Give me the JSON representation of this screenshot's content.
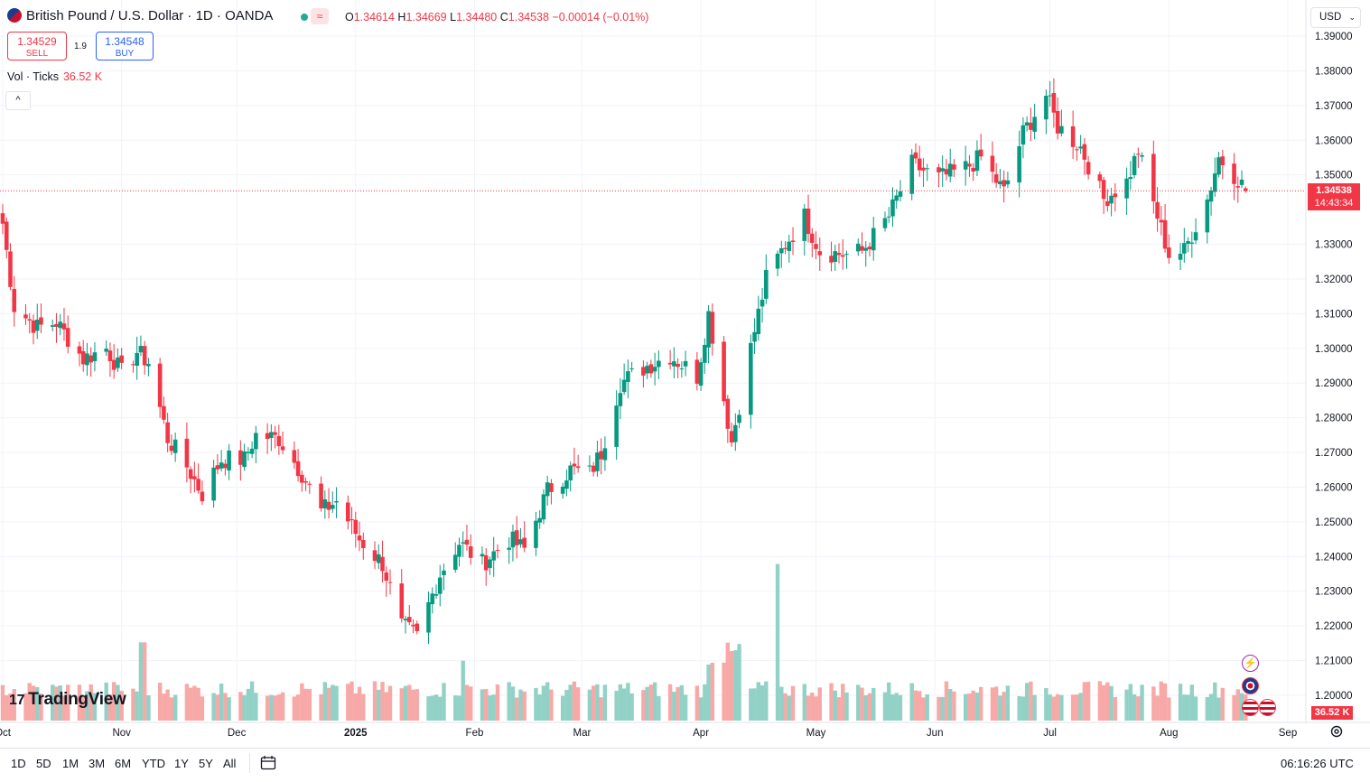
{
  "header": {
    "title": "British Pound / U.S. Dollar · 1D · OANDA",
    "ohlc": [
      {
        "key": "O",
        "value": "1.34614"
      },
      {
        "key": "H",
        "value": "1.34669"
      },
      {
        "key": "L",
        "value": "1.34480"
      },
      {
        "key": "C",
        "value": "1.34538"
      }
    ],
    "change": "−0.00014 (−0.01%)",
    "market_status_icon": "green-dot-icon",
    "wave_icon_glyph": "≈"
  },
  "trade": {
    "sell_price": "1.34529",
    "sell_label": "SELL",
    "spread": "1.9",
    "buy_price": "1.34548",
    "buy_label": "BUY"
  },
  "volume_legend": {
    "label": "Vol · Ticks",
    "value": "36.52 K"
  },
  "currency_selector": "USD",
  "last_price": {
    "price": "1.34538",
    "countdown": "14:43:34"
  },
  "volume_last": "36.52 K",
  "logo": {
    "text": "TradingView",
    "mark": "17"
  },
  "range_buttons": [
    "1D",
    "5D",
    "1M",
    "3M",
    "6M",
    "YTD",
    "1Y",
    "5Y",
    "All"
  ],
  "clock": "06:16:26 UTC",
  "colors": {
    "up": "#089981",
    "down": "#f23645",
    "vol_up": "#92d1c6",
    "vol_down": "#f7a9a7",
    "grid": "#f0f3fa"
  },
  "chart_data": {
    "type": "candlestick",
    "title": "British Pound / U.S. Dollar",
    "ylim": [
      1.19,
      1.39
    ],
    "y_ticks": [
      "1.39000",
      "1.38000",
      "1.37000",
      "1.36000",
      "1.35000",
      "1.33000",
      "1.32000",
      "1.31000",
      "1.30000",
      "1.29000",
      "1.28000",
      "1.27000",
      "1.26000",
      "1.25000",
      "1.24000",
      "1.23000",
      "1.22000",
      "1.21000",
      "1.20000"
    ],
    "x_ticks": [
      "Oct",
      "Nov",
      "Dec",
      "2025",
      "Feb",
      "Mar",
      "Apr",
      "May",
      "Jun",
      "Jul",
      "Aug",
      "Sep"
    ],
    "series": [
      {
        "name": "GBPUSD",
        "kind": "candles",
        "close_points": [
          [
            "2024-10-01",
            1.336
          ],
          [
            "2024-10-04",
            1.312
          ],
          [
            "2024-10-10",
            1.306
          ],
          [
            "2024-10-15",
            1.3075
          ],
          [
            "2024-10-22",
            1.297
          ],
          [
            "2024-10-28",
            1.3
          ],
          [
            "2024-11-01",
            1.293
          ],
          [
            "2024-11-05",
            1.299
          ],
          [
            "2024-11-08",
            1.296
          ],
          [
            "2024-11-13",
            1.274
          ],
          [
            "2024-11-18",
            1.266
          ],
          [
            "2024-11-22",
            1.258
          ],
          [
            "2024-11-27",
            1.268
          ],
          [
            "2024-12-03",
            1.268
          ],
          [
            "2024-12-06",
            1.275
          ],
          [
            "2024-12-12",
            1.274
          ],
          [
            "2024-12-18",
            1.264
          ],
          [
            "2024-12-23",
            1.253
          ],
          [
            "2024-12-27",
            1.256
          ],
          [
            "2025-01-02",
            1.245
          ],
          [
            "2025-01-08",
            1.238
          ],
          [
            "2025-01-13",
            1.22
          ],
          [
            "2025-01-17",
            1.217
          ],
          [
            "2025-01-23",
            1.235
          ],
          [
            "2025-01-28",
            1.244
          ],
          [
            "2025-02-03",
            1.238
          ],
          [
            "2025-02-10",
            1.245
          ],
          [
            "2025-02-14",
            1.242
          ],
          [
            "2025-02-20",
            1.259
          ],
          [
            "2025-02-26",
            1.265
          ],
          [
            "2025-03-03",
            1.264
          ],
          [
            "2025-03-06",
            1.27
          ],
          [
            "2025-03-11",
            1.29
          ],
          [
            "2025-03-18",
            1.295
          ],
          [
            "2025-03-24",
            1.298
          ],
          [
            "2025-03-31",
            1.292
          ],
          [
            "2025-04-03",
            1.31
          ],
          [
            "2025-04-09",
            1.273
          ],
          [
            "2025-04-14",
            1.3
          ],
          [
            "2025-04-18",
            1.32
          ],
          [
            "2025-04-23",
            1.33
          ],
          [
            "2025-04-28",
            1.338
          ],
          [
            "2025-05-02",
            1.328
          ],
          [
            "2025-05-09",
            1.327
          ],
          [
            "2025-05-13",
            1.328
          ],
          [
            "2025-05-20",
            1.338
          ],
          [
            "2025-05-26",
            1.353
          ],
          [
            "2025-06-02",
            1.349
          ],
          [
            "2025-06-09",
            1.352
          ],
          [
            "2025-06-13",
            1.355
          ],
          [
            "2025-06-19",
            1.345
          ],
          [
            "2025-06-24",
            1.362
          ],
          [
            "2025-06-30",
            1.373
          ],
          [
            "2025-07-03",
            1.364
          ],
          [
            "2025-07-09",
            1.358
          ],
          [
            "2025-07-15",
            1.343
          ],
          [
            "2025-07-21",
            1.348
          ],
          [
            "2025-07-24",
            1.357
          ],
          [
            "2025-07-29",
            1.338
          ],
          [
            "2025-08-01",
            1.327
          ],
          [
            "2025-08-05",
            1.328
          ],
          [
            "2025-08-11",
            1.343
          ],
          [
            "2025-08-14",
            1.355
          ],
          [
            "2025-08-19",
            1.349
          ],
          [
            "2025-08-21",
            1.34538
          ]
        ]
      },
      {
        "name": "Vol · Ticks",
        "kind": "volume",
        "notes": "mostly ~25-45K per day; spikes around 2024-11-07, early April 2025, and 2025-04-22"
      }
    ],
    "last_value": 1.34538,
    "grid": true
  }
}
